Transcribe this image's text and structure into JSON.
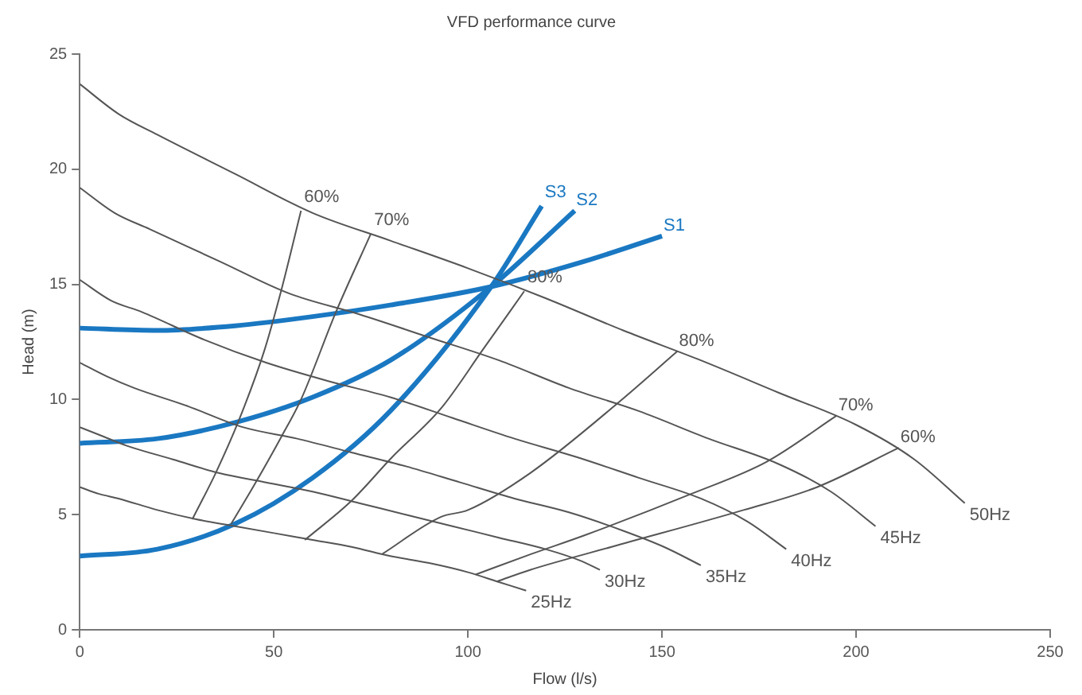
{
  "chart_data": {
    "type": "line",
    "title": "VFD performance curve",
    "xlabel": "Flow (l/s)",
    "ylabel": "Head (m)",
    "xlim": [
      0,
      250
    ],
    "xticks": [
      0,
      50,
      100,
      150,
      200,
      250
    ],
    "ylim": [
      0,
      25
    ],
    "yticks": [
      0,
      5,
      10,
      15,
      20,
      25
    ],
    "grid": false,
    "legend": false,
    "marker": "none",
    "series": [
      {
        "name": "50Hz",
        "color": "#555555",
        "x": [
          0,
          10,
          20,
          40,
          60,
          80,
          100,
          120,
          140,
          160,
          180,
          200,
          215,
          228
        ],
        "values": [
          23.7,
          22.4,
          21.5,
          19.8,
          18.1,
          16.9,
          15.7,
          14.4,
          13.0,
          11.7,
          10.3,
          8.9,
          7.4,
          5.5
        ]
      },
      {
        "name": "45Hz",
        "color": "#555555",
        "x": [
          0,
          9,
          18,
          36,
          54,
          72,
          90,
          108,
          126,
          144,
          162,
          180,
          193.5,
          205
        ],
        "values": [
          19.2,
          18.1,
          17.4,
          16.0,
          14.6,
          13.7,
          12.7,
          11.7,
          10.5,
          9.5,
          8.3,
          7.2,
          6.0,
          4.5
        ]
      },
      {
        "name": "40Hz",
        "color": "#555555",
        "x": [
          0,
          8,
          16,
          32,
          48,
          64,
          80,
          96,
          112,
          128,
          144,
          160,
          172,
          182
        ],
        "values": [
          15.2,
          14.3,
          13.8,
          12.6,
          11.6,
          10.8,
          10.1,
          9.2,
          8.3,
          7.5,
          6.6,
          5.7,
          4.7,
          3.5
        ]
      },
      {
        "name": "35Hz",
        "color": "#555555",
        "x": [
          0,
          7,
          14,
          28,
          42,
          56,
          70,
          84,
          98,
          112,
          126,
          140,
          150.5,
          160
        ],
        "values": [
          11.6,
          11.0,
          10.5,
          9.7,
          8.8,
          8.3,
          7.7,
          7.1,
          6.4,
          5.7,
          5.1,
          4.3,
          3.6,
          2.8
        ]
      },
      {
        "name": "30Hz",
        "color": "#555555",
        "x": [
          0,
          6,
          12,
          24,
          36,
          48,
          60,
          72,
          84,
          96,
          108,
          120,
          129,
          134
        ],
        "values": [
          8.8,
          8.4,
          8.0,
          7.4,
          6.8,
          6.4,
          6.0,
          5.5,
          5.0,
          4.5,
          4.0,
          3.5,
          3.0,
          2.6
        ]
      },
      {
        "name": "25Hz",
        "color": "#555555",
        "x": [
          0,
          5,
          10,
          20,
          30,
          40,
          50,
          60,
          70,
          80,
          90,
          100,
          107.5,
          115
        ],
        "values": [
          6.2,
          5.9,
          5.7,
          5.2,
          4.8,
          4.5,
          4.2,
          3.9,
          3.6,
          3.2,
          2.9,
          2.5,
          2.1,
          1.7
        ]
      },
      {
        "name": "60%",
        "color": "#555555",
        "x": [
          29,
          35,
          41,
          47.5,
          52,
          57
        ],
        "values": [
          4.8,
          6.8,
          9.1,
          12.1,
          14.8,
          18.2
        ]
      },
      {
        "name": "70%",
        "color": "#555555",
        "x": [
          39,
          45,
          52,
          57,
          66,
          75
        ],
        "values": [
          4.6,
          6.3,
          8.4,
          10.0,
          13.8,
          17.2
        ]
      },
      {
        "name": "80%",
        "color": "#555555",
        "x": [
          58,
          70,
          80.5,
          93,
          104,
          114.5
        ],
        "values": [
          3.9,
          5.6,
          7.5,
          9.6,
          12.2,
          14.7
        ]
      },
      {
        "name": "80%",
        "color": "#555555",
        "x": [
          78,
          93,
          100,
          116,
          139,
          154
        ],
        "values": [
          3.3,
          4.9,
          5.2,
          6.8,
          9.9,
          12.1
        ]
      },
      {
        "name": "70%",
        "color": "#555555",
        "x": [
          102,
          116.5,
          130,
          157.5,
          177,
          195
        ],
        "values": [
          2.4,
          3.3,
          4.1,
          5.9,
          7.3,
          9.3
        ]
      },
      {
        "name": "60%",
        "color": "#555555",
        "x": [
          107.5,
          116,
          137,
          171,
          190,
          211
        ],
        "values": [
          2.1,
          2.6,
          3.6,
          5.2,
          6.2,
          7.9
        ]
      },
      {
        "name": "S1",
        "color": "#1a78c2",
        "x": [
          0,
          20,
          40,
          60,
          80,
          106,
          130,
          150
        ],
        "values": [
          13.1,
          13.0,
          13.2,
          13.6,
          14.1,
          14.9,
          16.0,
          17.1
        ]
      },
      {
        "name": "S2",
        "color": "#1a78c2",
        "x": [
          0,
          20,
          40,
          60,
          80,
          106,
          127.5
        ],
        "values": [
          8.1,
          8.3,
          9.0,
          10.1,
          11.7,
          14.9,
          18.2
        ]
      },
      {
        "name": "S3",
        "color": "#1a78c2",
        "x": [
          0,
          20,
          40,
          60,
          80,
          106,
          119
        ],
        "values": [
          3.2,
          3.5,
          4.6,
          6.6,
          9.5,
          14.9,
          18.4
        ]
      }
    ]
  }
}
